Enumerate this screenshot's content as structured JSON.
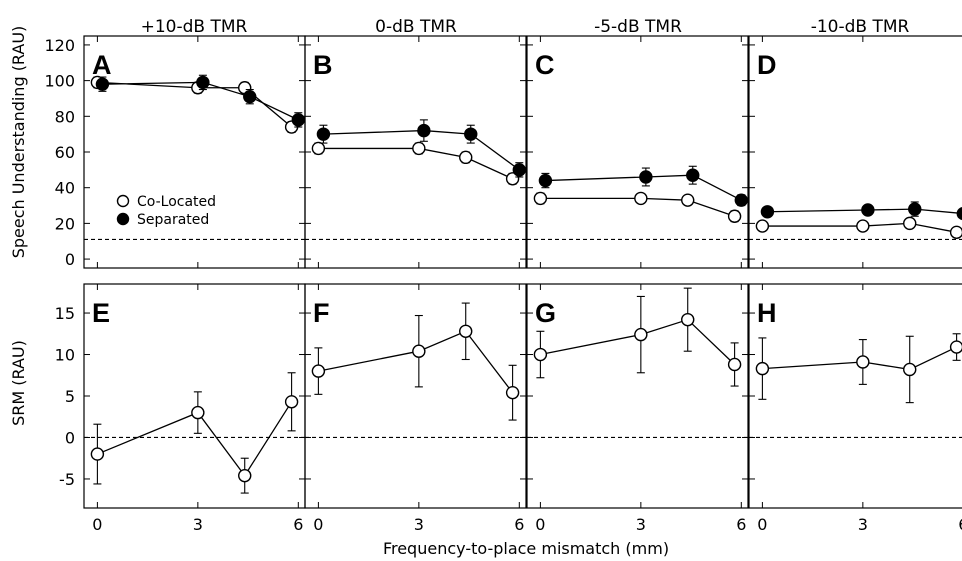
{
  "figure": {
    "columns": [
      "+10-dB TMR",
      "0-dB TMR",
      "-5-dB TMR",
      "-10-dB TMR"
    ],
    "xlabel": "Frequency-to-place mismatch (mm)",
    "xticks": [
      "0",
      "3",
      "6"
    ],
    "top": {
      "ylabel": "Speech Understanding (RAU)",
      "yticks": [
        "120",
        "100",
        "80",
        "60",
        "40",
        "20",
        "0"
      ]
    },
    "bottom": {
      "ylabel": "SRM (RAU)",
      "yticks": [
        "15",
        "10",
        "5",
        "0",
        "-5"
      ]
    },
    "legend": [
      "Co-Located",
      "Separated"
    ]
  },
  "chart_data": [
    {
      "type": "line",
      "panel": "A",
      "column": "+10-dB TMR",
      "ylabel": "Speech Understanding (RAU)",
      "xlabel": "Frequency-to-place mismatch (mm)",
      "xlim": [
        -0.4,
        6.2
      ],
      "ylim": [
        -5,
        125
      ],
      "reference_line": 11,
      "legend_position": "bottom-left",
      "series": [
        {
          "name": "Co-Located",
          "marker": "open-circle",
          "x": [
            0,
            3,
            4.4,
            5.8
          ],
          "y": [
            99,
            96,
            96,
            74
          ],
          "err": [
            3,
            3,
            3,
            3
          ]
        },
        {
          "name": "Separated",
          "marker": "filled-circle",
          "x": [
            0.15,
            3.15,
            4.55,
            6
          ],
          "y": [
            98,
            99,
            91,
            78
          ],
          "err": [
            4,
            4,
            4,
            4
          ]
        }
      ]
    },
    {
      "type": "line",
      "panel": "B",
      "column": "0-dB TMR",
      "xlim": [
        -0.4,
        6.2
      ],
      "ylim": [
        -5,
        125
      ],
      "reference_line": 11,
      "series": [
        {
          "name": "Co-Located",
          "marker": "open-circle",
          "x": [
            0,
            3,
            4.4,
            5.8
          ],
          "y": [
            62,
            62,
            57,
            45
          ],
          "err": [
            3,
            3,
            3,
            3
          ]
        },
        {
          "name": "Separated",
          "marker": "filled-circle",
          "x": [
            0.15,
            3.15,
            4.55,
            6
          ],
          "y": [
            70,
            72,
            70,
            50
          ],
          "err": [
            5,
            6,
            5,
            4
          ]
        }
      ]
    },
    {
      "type": "line",
      "panel": "C",
      "column": "-5-dB TMR",
      "xlim": [
        -0.4,
        6.2
      ],
      "ylim": [
        -5,
        125
      ],
      "reference_line": 11,
      "series": [
        {
          "name": "Co-Located",
          "marker": "open-circle",
          "x": [
            0,
            3,
            4.4,
            5.8
          ],
          "y": [
            34,
            34,
            33,
            24
          ],
          "err": [
            3,
            2,
            2,
            3
          ]
        },
        {
          "name": "Separated",
          "marker": "filled-circle",
          "x": [
            0.15,
            3.15,
            4.55,
            6
          ],
          "y": [
            44,
            46,
            47,
            33
          ],
          "err": [
            4,
            5,
            5,
            3
          ]
        }
      ]
    },
    {
      "type": "line",
      "panel": "D",
      "column": "-10-dB TMR",
      "xlim": [
        -0.4,
        6.2
      ],
      "ylim": [
        -5,
        125
      ],
      "reference_line": 11,
      "series": [
        {
          "name": "Co-Located",
          "marker": "open-circle",
          "x": [
            0,
            3,
            4.4,
            5.8
          ],
          "y": [
            18.5,
            18.5,
            20,
            15
          ],
          "err": [
            0,
            0,
            2,
            0
          ]
        },
        {
          "name": "Separated",
          "marker": "filled-circle",
          "x": [
            0.15,
            3.15,
            4.55,
            6
          ],
          "y": [
            26.5,
            27.5,
            28,
            25.5
          ],
          "err": [
            0,
            2,
            4,
            0
          ]
        }
      ]
    },
    {
      "type": "line",
      "panel": "E",
      "column": "+10-dB TMR",
      "ylabel": "SRM (RAU)",
      "xlabel": "Frequency-to-place mismatch (mm)",
      "xlim": [
        -0.4,
        6.2
      ],
      "ylim": [
        -8.5,
        18.5
      ],
      "reference_line": 0,
      "series": [
        {
          "name": "SRM",
          "marker": "open-circle",
          "x": [
            0,
            3,
            4.4,
            5.8
          ],
          "y": [
            -2,
            3,
            -4.6,
            4.3
          ],
          "err": [
            3.6,
            2.5,
            2.1,
            3.5
          ]
        }
      ]
    },
    {
      "type": "line",
      "panel": "F",
      "column": "0-dB TMR",
      "xlim": [
        -0.4,
        6.2
      ],
      "ylim": [
        -8.5,
        18.5
      ],
      "reference_line": 0,
      "series": [
        {
          "name": "SRM",
          "marker": "open-circle",
          "x": [
            0,
            3,
            4.4,
            5.8
          ],
          "y": [
            8,
            10.4,
            12.8,
            5.4
          ],
          "err": [
            2.8,
            4.3,
            3.4,
            3.3
          ]
        }
      ]
    },
    {
      "type": "line",
      "panel": "G",
      "column": "-5-dB TMR",
      "xlim": [
        -0.4,
        6.2
      ],
      "ylim": [
        -8.5,
        18.5
      ],
      "reference_line": 0,
      "series": [
        {
          "name": "SRM",
          "marker": "open-circle",
          "x": [
            0,
            3,
            4.4,
            5.8
          ],
          "y": [
            10,
            12.4,
            14.2,
            8.8
          ],
          "err": [
            2.8,
            4.6,
            3.8,
            2.6
          ]
        }
      ]
    },
    {
      "type": "line",
      "panel": "H",
      "column": "-10-dB TMR",
      "xlim": [
        -0.4,
        6.2
      ],
      "ylim": [
        -8.5,
        18.5
      ],
      "reference_line": 0,
      "series": [
        {
          "name": "SRM",
          "marker": "open-circle",
          "x": [
            0,
            3,
            4.4,
            5.8
          ],
          "y": [
            8.3,
            9.1,
            8.2,
            10.9
          ],
          "err": [
            3.7,
            2.7,
            4.0,
            1.6
          ]
        }
      ]
    }
  ]
}
